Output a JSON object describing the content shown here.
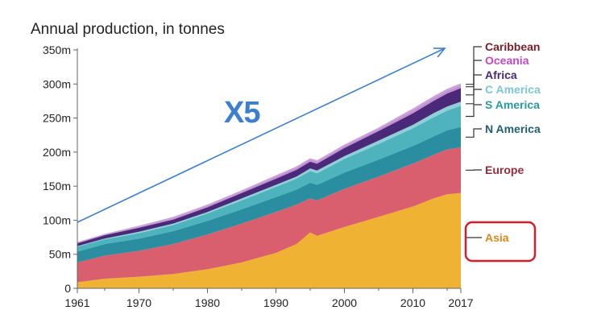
{
  "chart_data": {
    "type": "area",
    "stacked": true,
    "title": "Annual production, in tonnes",
    "xlabel": "",
    "ylabel": "",
    "xlim": [
      1961,
      2017
    ],
    "ylim": [
      0,
      350
    ],
    "x_ticks": [
      "1961",
      "1970",
      "1980",
      "1990",
      "2000",
      "2010",
      "2017"
    ],
    "y_ticks": [
      "0",
      "50m",
      "100m",
      "150m",
      "200m",
      "250m",
      "300m",
      "350m"
    ],
    "grid": false,
    "legend_position": "right",
    "x": [
      1961,
      1965,
      1970,
      1975,
      1980,
      1985,
      1990,
      1993,
      1995,
      1996,
      2000,
      2005,
      2010,
      2013,
      2015,
      2017
    ],
    "series": [
      {
        "name": "Asia",
        "color": "#f0b233",
        "values": [
          9,
          14,
          17,
          21,
          28,
          38,
          52,
          65,
          82,
          77,
          90,
          105,
          120,
          132,
          138,
          140
        ]
      },
      {
        "name": "Europe",
        "color": "#d95f6e",
        "values": [
          29,
          34,
          38,
          44,
          51,
          57,
          60,
          58,
          50,
          52,
          56,
          59,
          63,
          64,
          66,
          67
        ]
      },
      {
        "name": "N America",
        "color": "#2b8ea0",
        "values": [
          16,
          17,
          18,
          19,
          20,
          21,
          22,
          22,
          23,
          23,
          24,
          25,
          26,
          27,
          28,
          30
        ]
      },
      {
        "name": "S America",
        "color": "#4fb3be",
        "values": [
          7,
          7,
          8,
          9,
          11,
          13,
          15,
          16,
          17,
          17,
          20,
          23,
          26,
          28,
          29,
          31
        ]
      },
      {
        "name": "C America",
        "color": "#8fd0d8",
        "values": [
          1,
          1,
          2,
          2,
          2,
          3,
          3,
          3,
          4,
          4,
          4,
          5,
          5,
          6,
          6,
          6
        ]
      },
      {
        "name": "Africa",
        "color": "#4a2a78",
        "values": [
          4,
          5,
          6,
          6,
          7,
          8,
          9,
          10,
          10,
          10,
          12,
          14,
          17,
          18,
          19,
          20
        ]
      },
      {
        "name": "Oceania",
        "color": "#c58fd8",
        "values": [
          1,
          1,
          1,
          2,
          2,
          2,
          3,
          3,
          3,
          3,
          3,
          3,
          4,
          4,
          4,
          4
        ]
      },
      {
        "name": "Caribbean",
        "color": "#c6a4d4",
        "values": [
          1,
          1,
          2,
          2,
          2,
          2,
          2,
          2,
          2,
          2,
          2,
          2,
          3,
          3,
          3,
          3
        ]
      }
    ],
    "annotations": [
      {
        "text": "X5",
        "color": "#3d7fcf"
      }
    ],
    "legend": [
      {
        "label": "Caribbean",
        "color": "#7a1f2a"
      },
      {
        "label": "Oceania",
        "color": "#c04ac4"
      },
      {
        "label": "Africa",
        "color": "#4a2a78"
      },
      {
        "label": "C America",
        "color": "#7ec6d4"
      },
      {
        "label": "S America",
        "color": "#2a9aa0"
      },
      {
        "label": "N America",
        "color": "#1f5f6e"
      },
      {
        "label": "Europe",
        "color": "#9a2a3a"
      },
      {
        "label": "Asia",
        "color": "#d98a1e",
        "highlight_color": "#d21f2a"
      }
    ],
    "arrow_color": "#3d7fcf"
  }
}
